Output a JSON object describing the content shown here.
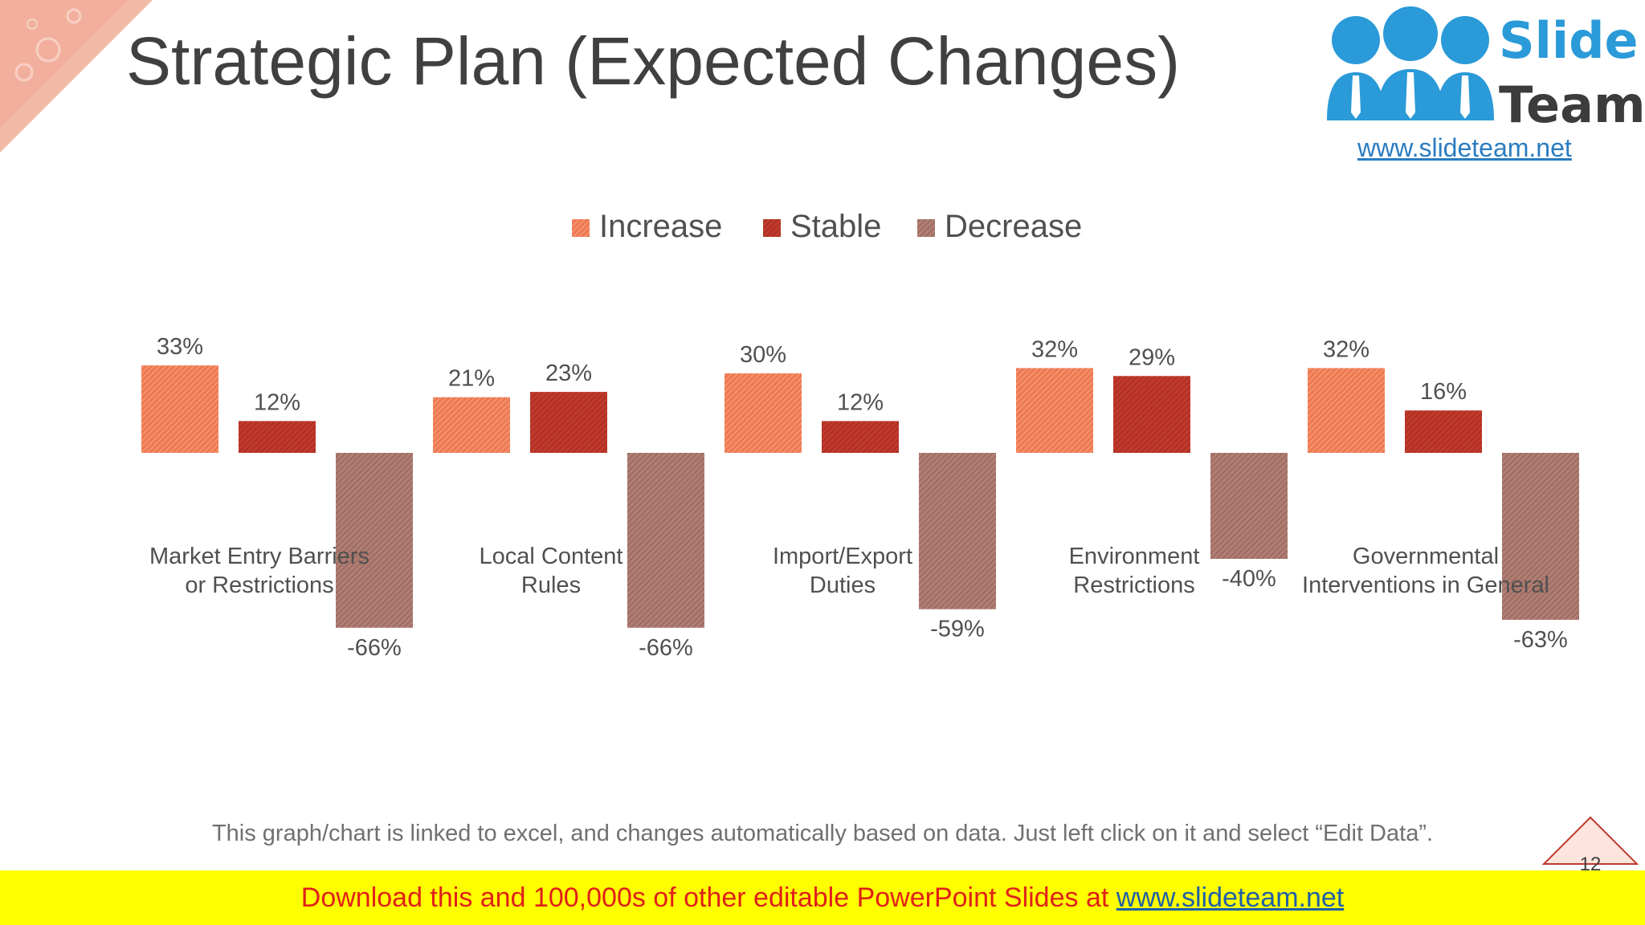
{
  "slide": {
    "title": "Strategic Plan (Expected Changes)",
    "footnote": "This graph/chart is linked to excel, and changes automatically based on data. Just left click on it and select “Edit Data”.",
    "page_number": "12"
  },
  "logo": {
    "word1": "Slide",
    "word2": "Team",
    "url": "www.slideteam.net"
  },
  "banner": {
    "text": "Download this and 100,000s of other editable PowerPoint Slides at ",
    "link": "www.slideteam.net"
  },
  "colors": {
    "increase": "#ef7a52",
    "stable": "#c0392b",
    "decrease": "#b07d72",
    "title": "#404040",
    "banner_bg": "#ffff00",
    "banner_text": "#e0201a"
  },
  "chart_data": {
    "type": "bar",
    "categories": [
      [
        "Market Entry Barriers",
        "or Restrictions"
      ],
      [
        "Local Content",
        "Rules"
      ],
      [
        "Import/Export",
        "Duties"
      ],
      [
        "Environment",
        "Restrictions"
      ],
      [
        "Governmental",
        "Interventions in General"
      ]
    ],
    "series": [
      {
        "name": "Increase",
        "values": [
          33,
          21,
          30,
          32,
          32
        ]
      },
      {
        "name": "Stable",
        "values": [
          12,
          23,
          12,
          29,
          16
        ]
      },
      {
        "name": "Decrease",
        "values": [
          -66,
          -66,
          -59,
          -40,
          -63
        ]
      }
    ],
    "value_suffix": "%",
    "legend_position": "top-center",
    "grid": false
  }
}
